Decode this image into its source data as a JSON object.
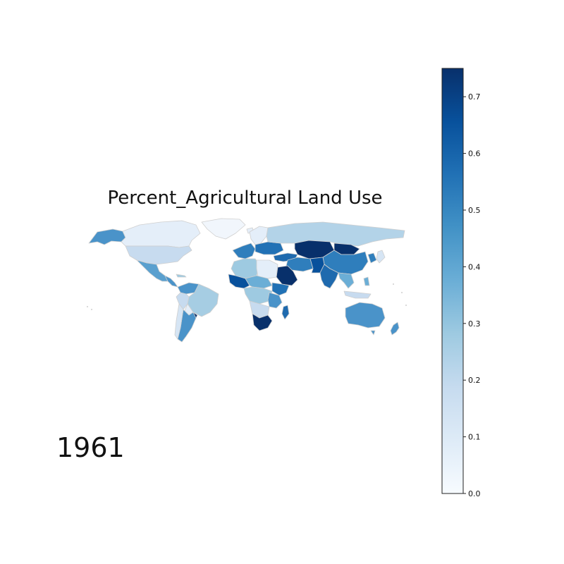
{
  "figure": {
    "title": "Percent_Agricultural Land Use",
    "year": "1961"
  },
  "colorbar": {
    "min": 0.0,
    "max": 0.75,
    "ticks": [
      {
        "value": 0.0,
        "label": "0.0"
      },
      {
        "value": 0.1,
        "label": "0.1"
      },
      {
        "value": 0.2,
        "label": "0.2"
      },
      {
        "value": 0.3,
        "label": "0.3"
      },
      {
        "value": 0.4,
        "label": "0.4"
      },
      {
        "value": 0.5,
        "label": "0.5"
      },
      {
        "value": 0.6,
        "label": "0.6"
      },
      {
        "value": 0.7,
        "label": "0.7"
      }
    ],
    "colors": [
      "#f7fbff",
      "#deebf7",
      "#c6dbef",
      "#9ecae1",
      "#6baed6",
      "#4292c6",
      "#2171b5",
      "#08519c",
      "#08306b"
    ]
  },
  "map": {
    "border_color": "#cfcfcf",
    "no_data_color": "#ffffff"
  }
}
